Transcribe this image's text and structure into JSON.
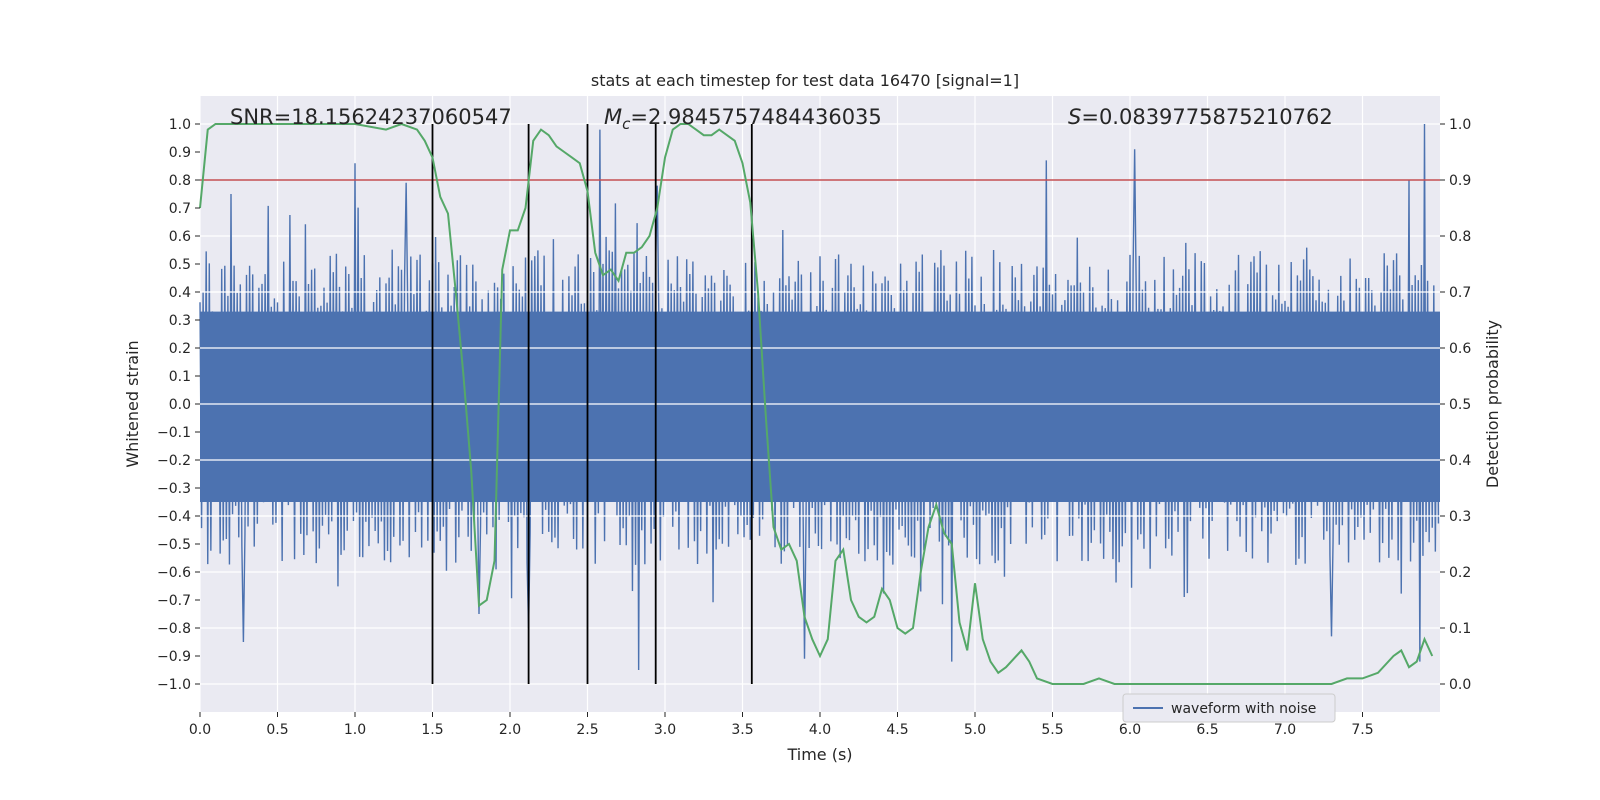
{
  "chart_data": {
    "type": "line",
    "title": "stats at each timestep for test data 16470 [signal=1]",
    "xlabel": "Time (s)",
    "ylabel": "Whitened strain",
    "y2label": "Detection probability",
    "xlim": [
      0,
      8
    ],
    "ylim": [
      -1.1,
      1.1
    ],
    "y2lim": [
      -0.05,
      1.05
    ],
    "xticks": [
      "0.0",
      "0.5",
      "1.0",
      "1.5",
      "2.0",
      "2.5",
      "3.0",
      "3.5",
      "4.0",
      "4.5",
      "5.0",
      "5.5",
      "6.0",
      "6.5",
      "7.0",
      "7.5"
    ],
    "yticks": [
      "-1.0",
      "-0.9",
      "-0.8",
      "-0.7",
      "-0.6",
      "-0.5",
      "-0.4",
      "-0.3",
      "-0.2",
      "-0.1",
      "0.0",
      "0.1",
      "0.2",
      "0.3",
      "0.4",
      "0.5",
      "0.6",
      "0.7",
      "0.8",
      "0.9",
      "1.0"
    ],
    "y2ticks": [
      "0.0",
      "0.1",
      "0.2",
      "0.3",
      "0.4",
      "0.5",
      "0.6",
      "0.7",
      "0.8",
      "0.9",
      "1.0"
    ],
    "grid": true,
    "legend": {
      "placement": "lower-right",
      "entries": [
        "waveform with noise"
      ]
    },
    "annotations": {
      "snr": "SNR=18.15624237060547",
      "mc_symbol": "M",
      "mc_sub": "c",
      "mc_value": "=2.9845757484436035",
      "s_symbol": "S",
      "s_value": "=0.0839775875210762"
    },
    "threshold_line": {
      "y2": 0.9,
      "color": "#c44e52"
    },
    "vertical_lines_x": [
      1.5,
      2.12,
      2.5,
      2.94,
      3.56
    ],
    "waveform": {
      "name": "waveform with noise",
      "color": "#4c72b0",
      "samples": 800,
      "band_upper": 0.48,
      "band_lower": -0.5,
      "peaks": [
        [
          0.2,
          0.75
        ],
        [
          0.28,
          -0.85
        ],
        [
          1.0,
          0.86
        ],
        [
          1.33,
          0.79
        ],
        [
          1.8,
          -0.75
        ],
        [
          2.12,
          -0.8
        ],
        [
          2.58,
          0.98
        ],
        [
          2.83,
          -0.95
        ],
        [
          2.95,
          0.78
        ],
        [
          3.9,
          -0.91
        ],
        [
          4.85,
          -0.92
        ],
        [
          5.46,
          0.87
        ],
        [
          6.03,
          0.91
        ],
        [
          7.3,
          -0.83
        ],
        [
          7.8,
          0.8
        ],
        [
          7.9,
          1.0
        ],
        [
          7.87,
          -0.92
        ]
      ]
    },
    "probability": {
      "name": "detection probability",
      "color": "#55a868",
      "x": [
        0.0,
        0.05,
        0.1,
        0.2,
        0.5,
        0.8,
        1.0,
        1.2,
        1.3,
        1.4,
        1.45,
        1.5,
        1.55,
        1.6,
        1.65,
        1.7,
        1.75,
        1.8,
        1.85,
        1.9,
        1.95,
        2.0,
        2.05,
        2.1,
        2.15,
        2.2,
        2.25,
        2.3,
        2.35,
        2.4,
        2.45,
        2.5,
        2.55,
        2.6,
        2.65,
        2.7,
        2.75,
        2.8,
        2.85,
        2.9,
        2.95,
        3.0,
        3.05,
        3.1,
        3.15,
        3.2,
        3.25,
        3.3,
        3.35,
        3.4,
        3.45,
        3.5,
        3.55,
        3.6,
        3.65,
        3.7,
        3.75,
        3.8,
        3.85,
        3.9,
        3.95,
        4.0,
        4.05,
        4.1,
        4.15,
        4.2,
        4.25,
        4.3,
        4.35,
        4.4,
        4.45,
        4.5,
        4.55,
        4.6,
        4.65,
        4.7,
        4.75,
        4.8,
        4.85,
        4.9,
        4.95,
        5.0,
        5.05,
        5.1,
        5.15,
        5.2,
        5.3,
        5.35,
        5.4,
        5.5,
        5.6,
        5.7,
        5.8,
        5.9,
        6.0,
        6.2,
        6.5,
        6.8,
        7.0,
        7.3,
        7.4,
        7.5,
        7.6,
        7.7,
        7.75,
        7.8,
        7.85,
        7.9,
        7.95
      ],
      "y": [
        0.85,
        0.99,
        1.0,
        1.0,
        1.0,
        1.0,
        1.0,
        0.99,
        1.0,
        0.99,
        0.97,
        0.94,
        0.87,
        0.84,
        0.7,
        0.55,
        0.38,
        0.14,
        0.15,
        0.22,
        0.74,
        0.81,
        0.81,
        0.85,
        0.97,
        0.99,
        0.98,
        0.96,
        0.95,
        0.94,
        0.93,
        0.88,
        0.77,
        0.73,
        0.74,
        0.72,
        0.77,
        0.77,
        0.78,
        0.8,
        0.85,
        0.94,
        0.99,
        1.0,
        1.0,
        0.99,
        0.98,
        0.98,
        0.99,
        0.98,
        0.97,
        0.93,
        0.86,
        0.7,
        0.48,
        0.28,
        0.24,
        0.25,
        0.22,
        0.12,
        0.08,
        0.05,
        0.08,
        0.22,
        0.24,
        0.15,
        0.12,
        0.11,
        0.12,
        0.17,
        0.15,
        0.1,
        0.09,
        0.1,
        0.2,
        0.28,
        0.32,
        0.27,
        0.25,
        0.11,
        0.06,
        0.18,
        0.08,
        0.04,
        0.02,
        0.03,
        0.06,
        0.04,
        0.01,
        0.0,
        0.0,
        0.0,
        0.01,
        0.0,
        0.0,
        0.0,
        0.0,
        0.0,
        0.0,
        0.0,
        0.01,
        0.01,
        0.02,
        0.05,
        0.06,
        0.03,
        0.04,
        0.08,
        0.05
      ]
    }
  }
}
